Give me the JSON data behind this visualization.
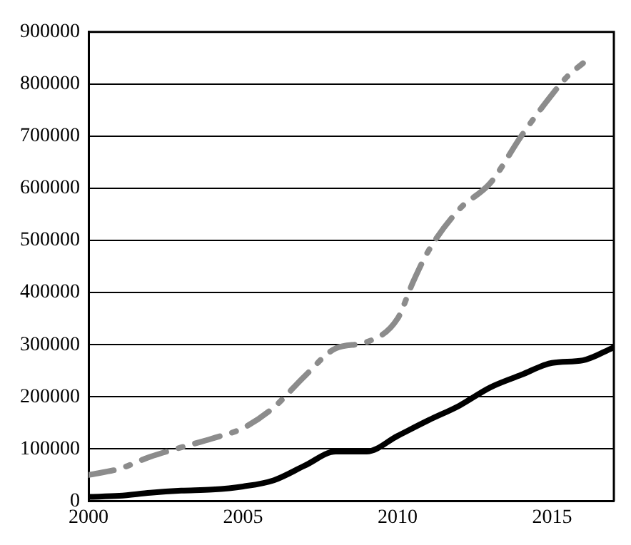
{
  "chart_data": {
    "type": "line",
    "x": [
      2000,
      2001,
      2002,
      2003,
      2004,
      2005,
      2006,
      2007,
      2008,
      2009,
      2010,
      2011,
      2012,
      2013,
      2014,
      2015,
      2016,
      2017
    ],
    "series": [
      {
        "color": "#000000",
        "line_style": "solid",
        "values": [
          8000,
          10000,
          16000,
          20000,
          22000,
          28000,
          40000,
          68000,
          95000,
          95000,
          125000,
          155000,
          183000,
          218000,
          242000,
          265000,
          270000,
          295000
        ]
      },
      {
        "color": "#8c8c8c",
        "line_style": "dashed",
        "x": [
          2000,
          2001,
          2002,
          2003,
          2004,
          2005,
          2006,
          2007,
          2008,
          2009,
          2010,
          2010.5,
          2011,
          2012,
          2013,
          2014,
          2015,
          2015.5,
          2016
        ],
        "values": [
          50000,
          62000,
          85000,
          103000,
          120000,
          140000,
          180000,
          240000,
          293000,
          305000,
          350000,
          420000,
          480000,
          560000,
          610000,
          700000,
          780000,
          815000,
          840000
        ]
      }
    ],
    "xlim": [
      2000,
      2017
    ],
    "xticks": [
      2000,
      2005,
      2010,
      2015
    ],
    "ylim": [
      0,
      900000
    ],
    "yticks": [
      0,
      100000,
      200000,
      300000,
      400000,
      500000,
      600000,
      700000,
      800000,
      900000
    ],
    "grid": "y",
    "legend": false,
    "marker": "none"
  }
}
